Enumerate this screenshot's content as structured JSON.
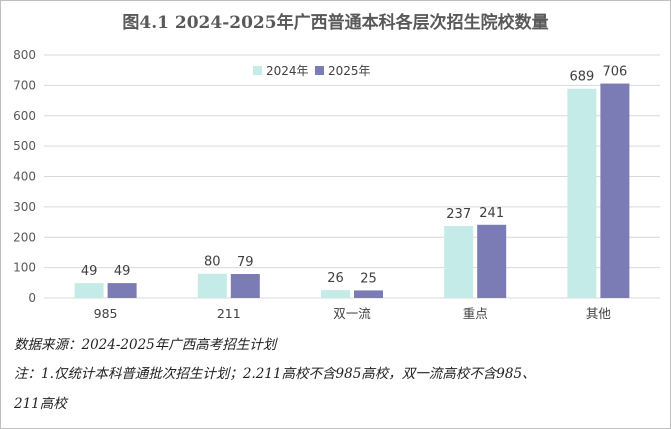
{
  "chart_data": {
    "type": "bar",
    "title": "图4.1 2024-2025年广西普通本科各层次招生院校数量",
    "categories": [
      "985",
      "211",
      "双一流",
      "重点",
      "其他"
    ],
    "series": [
      {
        "name": "2024年",
        "values": [
          49,
          80,
          26,
          237,
          689
        ],
        "color": "#c5ebe8"
      },
      {
        "name": "2025年",
        "values": [
          49,
          79,
          25,
          241,
          706
        ],
        "color": "#7b7bb5"
      }
    ],
    "ylim": [
      0,
      800
    ],
    "yticks": [
      0,
      100,
      200,
      300,
      400,
      500,
      600,
      700,
      800
    ],
    "xlabel": "",
    "ylabel": "",
    "grid": true,
    "legend": "top-center"
  },
  "notes": {
    "source": "数据来源：2024-2025年广西高考招生计划",
    "note_line1": "注：1.仅统计本科普通批次招生计划；2.211高校不含985高校，双一流高校不含985、",
    "note_line2": "211高校"
  }
}
